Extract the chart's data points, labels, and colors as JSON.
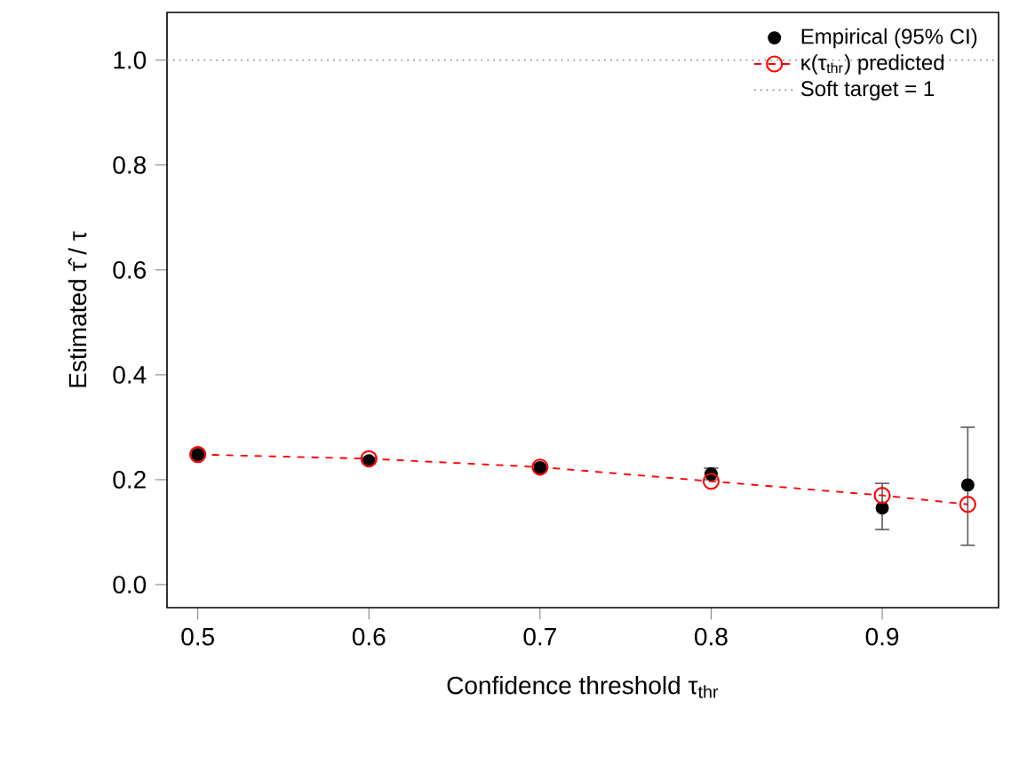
{
  "chart_data": {
    "type": "line",
    "xlabel": "Confidence threshold τ$_{thr}$",
    "ylabel": "Estimated τ̂ / τ",
    "x": [
      0.5,
      0.6,
      0.7,
      0.8,
      0.9,
      0.95
    ],
    "series": [
      {
        "name": "Empirical (95% CI)",
        "type": "scatter",
        "color": "#000000",
        "marker": "circle",
        "values": [
          0.248,
          0.236,
          0.223,
          0.211,
          0.146,
          0.19
        ],
        "errors": [
          [
            0.243,
            0.254
          ],
          [
            0.231,
            0.242
          ],
          [
            0.219,
            0.228
          ],
          [
            0.2,
            0.222
          ],
          [
            0.105,
            0.193
          ],
          [
            0.075,
            0.3
          ]
        ]
      },
      {
        "name": "κ(τ$_{thr}$) predicted",
        "color": "#ff0000",
        "marker": "circle",
        "line_style": "dashed",
        "values": [
          0.248,
          0.24,
          0.224,
          0.197,
          0.17,
          0.153
        ]
      }
    ],
    "ref_lines": [
      {
        "axis": "y",
        "value": 1,
        "label": "Soft target = 1",
        "color": "#808080",
        "line_style": "dotted"
      }
    ],
    "xlim": [
      0.482,
      0.968
    ],
    "ylim": [
      -0.044,
      1.091
    ],
    "xticks": [
      0.5,
      0.6,
      0.7,
      0.8,
      0.9
    ],
    "yticks": [
      {
        "value": 0,
        "label": "0.0"
      },
      0.2,
      0.4,
      0.6,
      0.8,
      {
        "value": 1,
        "label": "1.0"
      }
    ],
    "legend": "top right",
    "grid": false
  }
}
